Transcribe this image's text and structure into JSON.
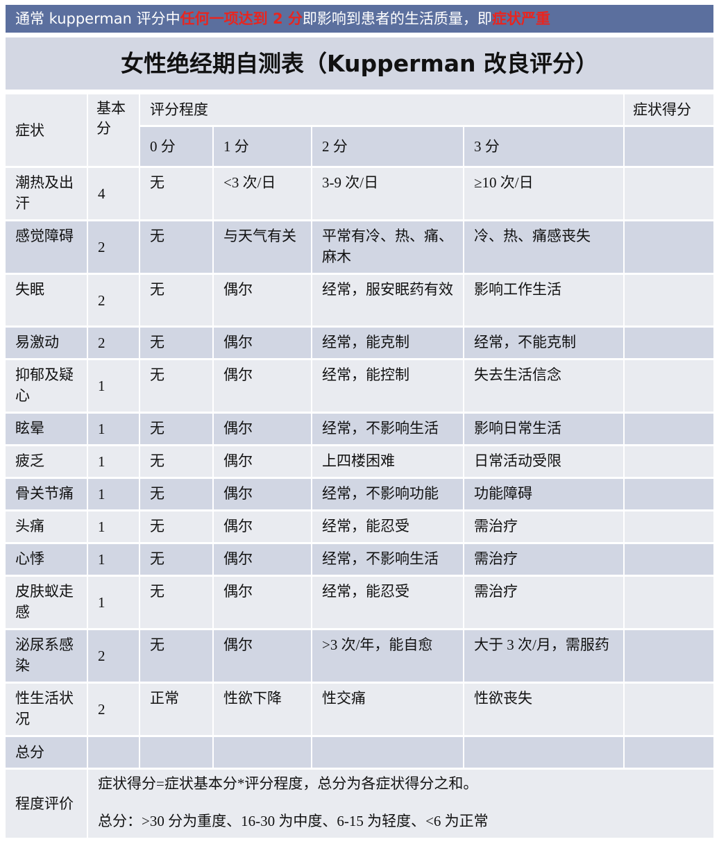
{
  "banner": {
    "part1": "通常 kupperman 评分中",
    "part2": "任何一项达到 2 分",
    "part3": "即影响到患者的生活质量，即",
    "part4": "症状严重"
  },
  "title": "女性绝经期自测表（Kupperman 改良评分）",
  "header": {
    "symptom": "症状",
    "base": "基本分",
    "degree": "评分程度",
    "score": "症状得分",
    "levels": [
      "0 分",
      "1 分",
      "2 分",
      "3 分"
    ]
  },
  "rows": [
    {
      "symptom": "潮热及出汗",
      "base": "4",
      "levels": [
        "无",
        "<3 次/日",
        "3-9 次/日",
        "≥10 次/日"
      ]
    },
    {
      "symptom": "感觉障碍",
      "base": "2",
      "levels": [
        "无",
        "与天气有关",
        "平常有冷、热、痛、麻木",
        "冷、热、痛感丧失"
      ]
    },
    {
      "symptom": "失眠",
      "base": "2",
      "levels": [
        "无",
        "偶尔",
        "经常，服安眠药有效",
        "影响工作生活"
      ]
    },
    {
      "symptom": "易激动",
      "base": "2",
      "levels": [
        "无",
        "偶尔",
        "经常，能克制",
        "经常，不能克制"
      ]
    },
    {
      "symptom": "抑郁及疑心",
      "base": "1",
      "levels": [
        "无",
        "偶尔",
        "经常，能控制",
        "失去生活信念"
      ]
    },
    {
      "symptom": "眩晕",
      "base": "1",
      "levels": [
        "无",
        "偶尔",
        "经常，不影响生活",
        "影响日常生活"
      ]
    },
    {
      "symptom": "疲乏",
      "base": "1",
      "levels": [
        "无",
        "偶尔",
        "上四楼困难",
        "日常活动受限"
      ]
    },
    {
      "symptom": "骨关节痛",
      "base": "1",
      "levels": [
        "无",
        "偶尔",
        "经常，不影响功能",
        "功能障碍"
      ]
    },
    {
      "symptom": "头痛",
      "base": "1",
      "levels": [
        "无",
        "偶尔",
        "经常，能忍受",
        "需治疗"
      ]
    },
    {
      "symptom": "心悸",
      "base": "1",
      "levels": [
        "无",
        "偶尔",
        "经常，不影响生活",
        "需治疗"
      ]
    },
    {
      "symptom": "皮肤蚁走感",
      "base": "1",
      "levels": [
        "无",
        "偶尔",
        "经常，能忍受",
        "需治疗"
      ]
    },
    {
      "symptom": "泌尿系感染",
      "base": "2",
      "levels": [
        "无",
        "偶尔",
        ">3 次/年，能自愈",
        "大于 3 次/月，需服药"
      ]
    },
    {
      "symptom": "性生活状况",
      "base": "2",
      "levels": [
        "正常",
        "性欲下降",
        "性交痛",
        "性欲丧失"
      ]
    }
  ],
  "total_label": "总分",
  "evaluation": {
    "label": "程度评价",
    "line1": "症状得分=症状基本分*评分程度，总分为各症状得分之和。",
    "line2": "总分：>30 分为重度、16-30 为中度、6-15 为轻度、<6 为正常"
  },
  "colors": {
    "banner": "#5b6f9e",
    "highlight": "#e8251f",
    "row_light": "#e9ebf0",
    "row_dark": "#d1d6e3"
  }
}
